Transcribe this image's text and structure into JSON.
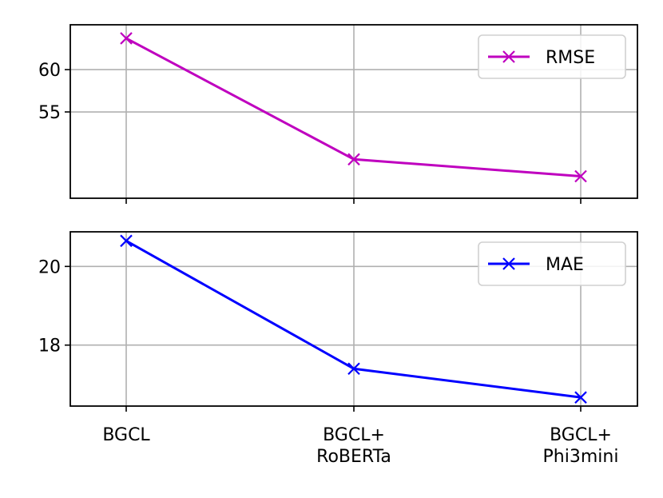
{
  "chart_data": [
    {
      "type": "line",
      "categories": [
        "BGCL",
        "BGCL+\nRoBERTa",
        "BGCL+\nPhi3mini"
      ],
      "series": [
        {
          "name": "RMSE",
          "values": [
            63.7,
            49.4,
            47.4
          ],
          "color": "#bf00bf",
          "marker": "x"
        }
      ],
      "ylim": [
        44.8,
        65.3
      ],
      "yticks": [
        55,
        60
      ],
      "grid": true,
      "legend": "top-right",
      "show_x_tick_labels": false
    },
    {
      "type": "line",
      "categories": [
        "BGCL",
        "BGCL+\nRoBERTa",
        "BGCL+\nPhi3mini"
      ],
      "series": [
        {
          "name": "MAE",
          "values": [
            20.65,
            17.4,
            16.67
          ],
          "color": "#0000ff",
          "marker": "x"
        }
      ],
      "ylim": [
        16.45,
        20.88
      ],
      "yticks": [
        18,
        20
      ],
      "grid": true,
      "legend": "top-right",
      "show_x_tick_labels": true
    }
  ]
}
